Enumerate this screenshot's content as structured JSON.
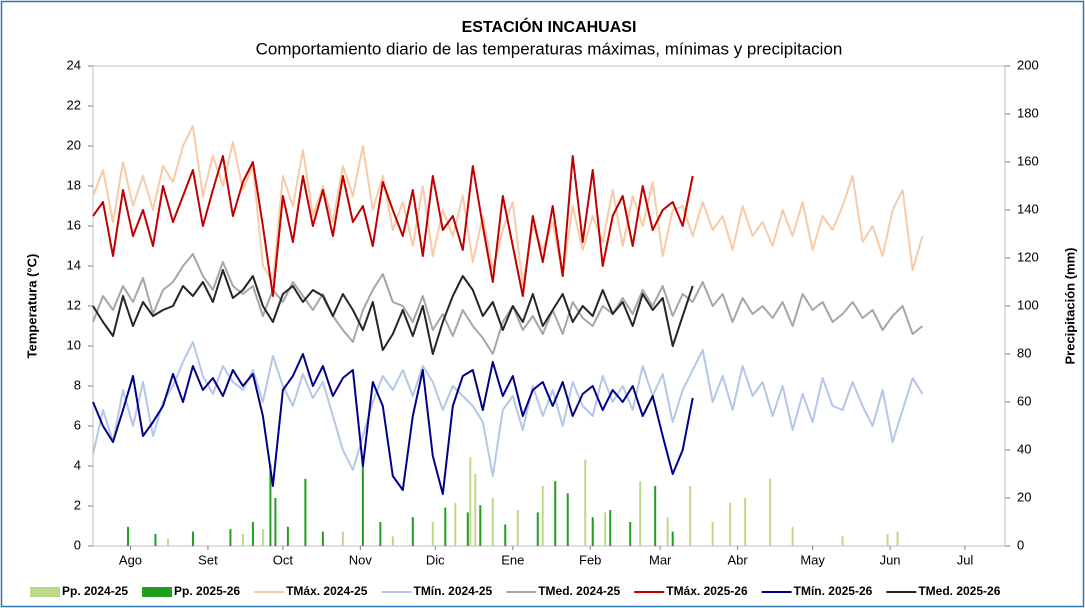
{
  "chart_data": {
    "type": "line",
    "title": "ESTACIÓN INCAHUASI",
    "subtitle": "Comportamiento diario de las temperaturas máximas, mínimas y precipitacion",
    "y_label": "Temperatura (°C)",
    "y2_label": "Precipitación (mm)",
    "xlim": [
      0,
      365
    ],
    "xticks": [
      {
        "value": 15,
        "label": "Ago"
      },
      {
        "value": 46,
        "label": "Set"
      },
      {
        "value": 76,
        "label": "Oct"
      },
      {
        "value": 107,
        "label": "Nov"
      },
      {
        "value": 137,
        "label": "Dic"
      },
      {
        "value": 168,
        "label": "Ene"
      },
      {
        "value": 199,
        "label": "Feb"
      },
      {
        "value": 227,
        "label": "Mar"
      },
      {
        "value": 258,
        "label": "Abr"
      },
      {
        "value": 288,
        "label": "May"
      },
      {
        "value": 319,
        "label": "Jun"
      },
      {
        "value": 349,
        "label": "Jul"
      }
    ],
    "ylim": [
      0,
      24
    ],
    "yticks": [
      0,
      2,
      4,
      6,
      8,
      10,
      12,
      14,
      16,
      18,
      20,
      22,
      24
    ],
    "y2lim": [
      0,
      200
    ],
    "y2ticks": [
      0,
      20,
      40,
      60,
      80,
      100,
      120,
      140,
      160,
      180,
      200
    ],
    "legend": "bottom",
    "series": [
      {
        "name": "Pp. 2024-25",
        "type": "bar",
        "axis": "y2",
        "color": "#bcd98a",
        "x": [
          30,
          60,
          68,
          100,
          120,
          136,
          145,
          151,
          153,
          160,
          170,
          180,
          197,
          205,
          219,
          230,
          239,
          248,
          255,
          261,
          271,
          280,
          300,
          318,
          322
        ],
        "values": [
          3,
          5,
          7,
          6,
          4,
          10,
          18,
          37,
          30,
          20,
          15,
          25,
          36,
          14,
          27,
          12,
          25,
          10,
          18,
          20,
          28,
          8,
          4,
          5,
          6
        ]
      },
      {
        "name": "Pp. 2025-26",
        "type": "bar",
        "axis": "y2",
        "color": "#1f9e1f",
        "x": [
          14,
          25,
          40,
          55,
          64,
          71,
          73,
          78,
          85,
          92,
          108,
          115,
          128,
          141,
          150,
          155,
          165,
          178,
          185,
          190,
          200,
          207,
          215,
          225,
          232
        ],
        "values": [
          8,
          5,
          6,
          7,
          10,
          34,
          20,
          8,
          28,
          6,
          35,
          10,
          12,
          16,
          14,
          17,
          9,
          14,
          27,
          22,
          12,
          15,
          10,
          25,
          6
        ]
      },
      {
        "name": "TMáx. 2024-25",
        "type": "line",
        "color": "#f8cba6",
        "x": [
          0,
          4,
          8,
          12,
          16,
          20,
          24,
          28,
          32,
          36,
          40,
          44,
          48,
          52,
          56,
          60,
          64,
          68,
          72,
          76,
          80,
          84,
          88,
          92,
          96,
          100,
          104,
          108,
          112,
          116,
          120,
          124,
          128,
          132,
          136,
          140,
          144,
          148,
          152,
          156,
          160,
          164,
          168,
          172,
          176,
          180,
          184,
          188,
          192,
          196,
          200,
          204,
          208,
          212,
          216,
          220,
          224,
          228,
          232,
          236,
          240,
          244,
          248,
          252,
          256,
          260,
          264,
          268,
          272,
          276,
          280,
          284,
          288,
          292,
          296,
          300,
          304,
          308,
          312,
          316,
          320,
          324,
          328,
          332
        ],
        "values": [
          17.5,
          18.8,
          16.2,
          19.2,
          17.0,
          18.5,
          16.8,
          19.0,
          18.2,
          20.0,
          21.0,
          17.5,
          19.5,
          18.0,
          20.2,
          17.8,
          19.0,
          14.0,
          13.2,
          18.5,
          17.0,
          19.8,
          16.5,
          18.0,
          16.2,
          19.0,
          17.5,
          20.0,
          16.8,
          18.5,
          15.8,
          17.2,
          15.0,
          18.0,
          14.5,
          16.8,
          15.5,
          17.5,
          14.2,
          16.5,
          13.8,
          15.8,
          17.2,
          13.0,
          16.0,
          14.8,
          16.2,
          13.5,
          17.0,
          14.8,
          16.5,
          15.2,
          17.8,
          15.0,
          17.5,
          16.0,
          18.2,
          14.5,
          16.8,
          17.0,
          15.5,
          17.2,
          15.8,
          16.5,
          14.8,
          17.0,
          15.5,
          16.2,
          15.0,
          16.8,
          15.5,
          17.2,
          14.8,
          16.5,
          15.8,
          17.0,
          18.5,
          15.2,
          16.0,
          14.5,
          16.8,
          17.8,
          13.8,
          15.5
        ]
      },
      {
        "name": "TMín. 2024-25",
        "type": "line",
        "color": "#b4c7e7",
        "x": [
          0,
          4,
          8,
          12,
          16,
          20,
          24,
          28,
          32,
          36,
          40,
          44,
          48,
          52,
          56,
          60,
          64,
          68,
          72,
          76,
          80,
          84,
          88,
          92,
          96,
          100,
          104,
          108,
          112,
          116,
          120,
          124,
          128,
          132,
          136,
          140,
          144,
          148,
          152,
          156,
          160,
          164,
          168,
          172,
          176,
          180,
          184,
          188,
          192,
          196,
          200,
          204,
          208,
          212,
          216,
          220,
          224,
          228,
          232,
          236,
          240,
          244,
          248,
          252,
          256,
          260,
          264,
          268,
          272,
          276,
          280,
          284,
          288,
          292,
          296,
          300,
          304,
          308,
          312,
          316,
          320,
          324,
          328,
          332
        ],
        "values": [
          4.6,
          6.8,
          5.2,
          7.8,
          6.0,
          8.2,
          5.5,
          7.2,
          8.0,
          9.2,
          10.2,
          8.5,
          7.6,
          9.0,
          8.2,
          7.8,
          8.8,
          7.2,
          9.5,
          8.0,
          7.0,
          8.6,
          7.4,
          8.2,
          6.5,
          4.8,
          3.8,
          5.5,
          7.2,
          8.5,
          7.8,
          8.8,
          7.5,
          9.0,
          8.2,
          6.8,
          8.0,
          7.5,
          7.0,
          6.2,
          3.5,
          6.8,
          7.5,
          5.8,
          8.0,
          6.5,
          7.8,
          6.0,
          8.2,
          7.0,
          6.5,
          8.5,
          7.2,
          8.0,
          6.8,
          9.0,
          7.5,
          8.6,
          6.2,
          7.8,
          8.8,
          9.8,
          7.2,
          8.5,
          6.8,
          9.0,
          7.5,
          8.2,
          6.5,
          8.0,
          5.8,
          7.6,
          6.2,
          8.4,
          7.0,
          6.8,
          8.2,
          7.0,
          6.0,
          7.8,
          5.2,
          6.8,
          8.4,
          7.6
        ]
      },
      {
        "name": "TMed. 2024-25",
        "type": "line",
        "color": "#a6a6a6",
        "x": [
          0,
          4,
          8,
          12,
          16,
          20,
          24,
          28,
          32,
          36,
          40,
          44,
          48,
          52,
          56,
          60,
          64,
          68,
          72,
          76,
          80,
          84,
          88,
          92,
          96,
          100,
          104,
          108,
          112,
          116,
          120,
          124,
          128,
          132,
          136,
          140,
          144,
          148,
          152,
          156,
          160,
          164,
          168,
          172,
          176,
          180,
          184,
          188,
          192,
          196,
          200,
          204,
          208,
          212,
          216,
          220,
          224,
          228,
          232,
          236,
          240,
          244,
          248,
          252,
          256,
          260,
          264,
          268,
          272,
          276,
          280,
          284,
          288,
          292,
          296,
          300,
          304,
          308,
          312,
          316,
          320,
          324,
          328,
          332
        ],
        "values": [
          11.2,
          12.5,
          11.8,
          13.0,
          12.2,
          13.4,
          11.6,
          12.8,
          13.2,
          14.0,
          14.6,
          13.5,
          12.8,
          14.2,
          13.0,
          12.6,
          13.0,
          11.5,
          12.8,
          12.2,
          13.2,
          12.5,
          11.8,
          12.6,
          11.5,
          10.8,
          10.2,
          11.8,
          12.8,
          13.6,
          12.2,
          12.0,
          11.2,
          12.5,
          10.8,
          11.6,
          10.5,
          11.8,
          11.0,
          10.4,
          9.6,
          11.2,
          12.0,
          10.8,
          11.5,
          10.6,
          11.8,
          10.6,
          12.2,
          11.4,
          11.0,
          12.0,
          11.6,
          12.4,
          11.6,
          12.8,
          12.0,
          13.0,
          11.5,
          12.6,
          12.2,
          13.2,
          12.0,
          12.6,
          11.2,
          12.4,
          11.6,
          12.0,
          11.4,
          12.2,
          11.0,
          12.6,
          11.8,
          12.2,
          11.2,
          11.6,
          12.2,
          11.4,
          11.8,
          10.8,
          11.5,
          12.0,
          10.6,
          11.0
        ]
      },
      {
        "name": "TMáx. 2025-26",
        "type": "line",
        "color": "#c00000",
        "x": [
          0,
          4,
          8,
          12,
          16,
          20,
          24,
          28,
          32,
          36,
          40,
          44,
          48,
          52,
          56,
          60,
          64,
          68,
          72,
          76,
          80,
          84,
          88,
          92,
          96,
          100,
          104,
          108,
          112,
          116,
          120,
          124,
          128,
          132,
          136,
          140,
          144,
          148,
          152,
          156,
          160,
          164,
          168,
          172,
          176,
          180,
          184,
          188,
          192,
          196,
          200,
          204,
          208,
          212,
          216,
          220,
          224,
          228,
          232,
          236,
          240
        ],
        "values": [
          16.5,
          17.2,
          14.5,
          17.8,
          15.5,
          16.8,
          15.0,
          18.0,
          16.2,
          17.5,
          18.8,
          16.0,
          17.8,
          19.5,
          16.5,
          18.2,
          19.2,
          16.0,
          12.5,
          17.5,
          15.2,
          18.5,
          16.0,
          17.8,
          15.5,
          18.5,
          16.2,
          17.0,
          15.0,
          18.2,
          16.8,
          15.5,
          17.8,
          14.5,
          18.5,
          15.8,
          16.5,
          14.8,
          19.0,
          16.0,
          13.2,
          17.5,
          15.0,
          12.5,
          16.5,
          14.2,
          17.0,
          13.5,
          19.5,
          15.2,
          18.8,
          14.0,
          16.5,
          17.5,
          15.0,
          18.0,
          15.8,
          16.8,
          17.2,
          16.0,
          18.5
        ]
      },
      {
        "name": "TMín. 2025-26",
        "type": "line",
        "color": "#00008b",
        "x": [
          0,
          4,
          8,
          12,
          16,
          20,
          24,
          28,
          32,
          36,
          40,
          44,
          48,
          52,
          56,
          60,
          64,
          68,
          72,
          76,
          80,
          84,
          88,
          92,
          96,
          100,
          104,
          108,
          112,
          116,
          120,
          124,
          128,
          132,
          136,
          140,
          144,
          148,
          152,
          156,
          160,
          164,
          168,
          172,
          176,
          180,
          184,
          188,
          192,
          196,
          200,
          204,
          208,
          212,
          216,
          220,
          224,
          228,
          232,
          236,
          240
        ],
        "values": [
          7.2,
          6.0,
          5.2,
          6.8,
          8.5,
          5.5,
          6.2,
          7.0,
          8.6,
          7.2,
          9.0,
          7.8,
          8.4,
          7.5,
          8.8,
          8.0,
          8.6,
          6.5,
          3.0,
          7.8,
          8.5,
          9.6,
          8.0,
          9.0,
          7.5,
          8.4,
          8.8,
          4.0,
          8.2,
          7.0,
          3.5,
          2.8,
          6.5,
          8.8,
          4.5,
          2.6,
          7.0,
          8.5,
          8.8,
          6.8,
          9.2,
          7.5,
          8.5,
          6.5,
          7.8,
          8.2,
          7.0,
          8.2,
          6.5,
          7.6,
          8.0,
          6.8,
          7.8,
          7.2,
          8.0,
          6.5,
          7.5,
          5.5,
          3.6,
          4.8,
          7.4
        ]
      },
      {
        "name": "TMed. 2025-26",
        "type": "line",
        "color": "#262626",
        "x": [
          0,
          4,
          8,
          12,
          16,
          20,
          24,
          28,
          32,
          36,
          40,
          44,
          48,
          52,
          56,
          60,
          64,
          68,
          72,
          76,
          80,
          84,
          88,
          92,
          96,
          100,
          104,
          108,
          112,
          116,
          120,
          124,
          128,
          132,
          136,
          140,
          144,
          148,
          152,
          156,
          160,
          164,
          168,
          172,
          176,
          180,
          184,
          188,
          192,
          196,
          200,
          204,
          208,
          212,
          216,
          220,
          224,
          228,
          232,
          236,
          240
        ],
        "values": [
          12.0,
          11.2,
          10.5,
          12.5,
          11.0,
          12.2,
          11.5,
          11.8,
          12.0,
          13.0,
          12.5,
          13.2,
          12.2,
          13.8,
          12.4,
          12.8,
          13.5,
          12.0,
          11.2,
          12.6,
          13.0,
          12.2,
          12.8,
          12.5,
          11.5,
          12.6,
          11.8,
          10.8,
          12.2,
          9.8,
          10.6,
          11.8,
          10.5,
          12.0,
          9.6,
          11.2,
          12.5,
          13.5,
          12.8,
          11.5,
          12.2,
          10.8,
          12.0,
          11.2,
          12.6,
          11.0,
          11.8,
          12.6,
          11.2,
          12.0,
          11.5,
          12.8,
          11.6,
          12.2,
          11.0,
          12.6,
          11.8,
          12.4,
          10.0,
          11.5,
          13.0
        ]
      }
    ]
  }
}
